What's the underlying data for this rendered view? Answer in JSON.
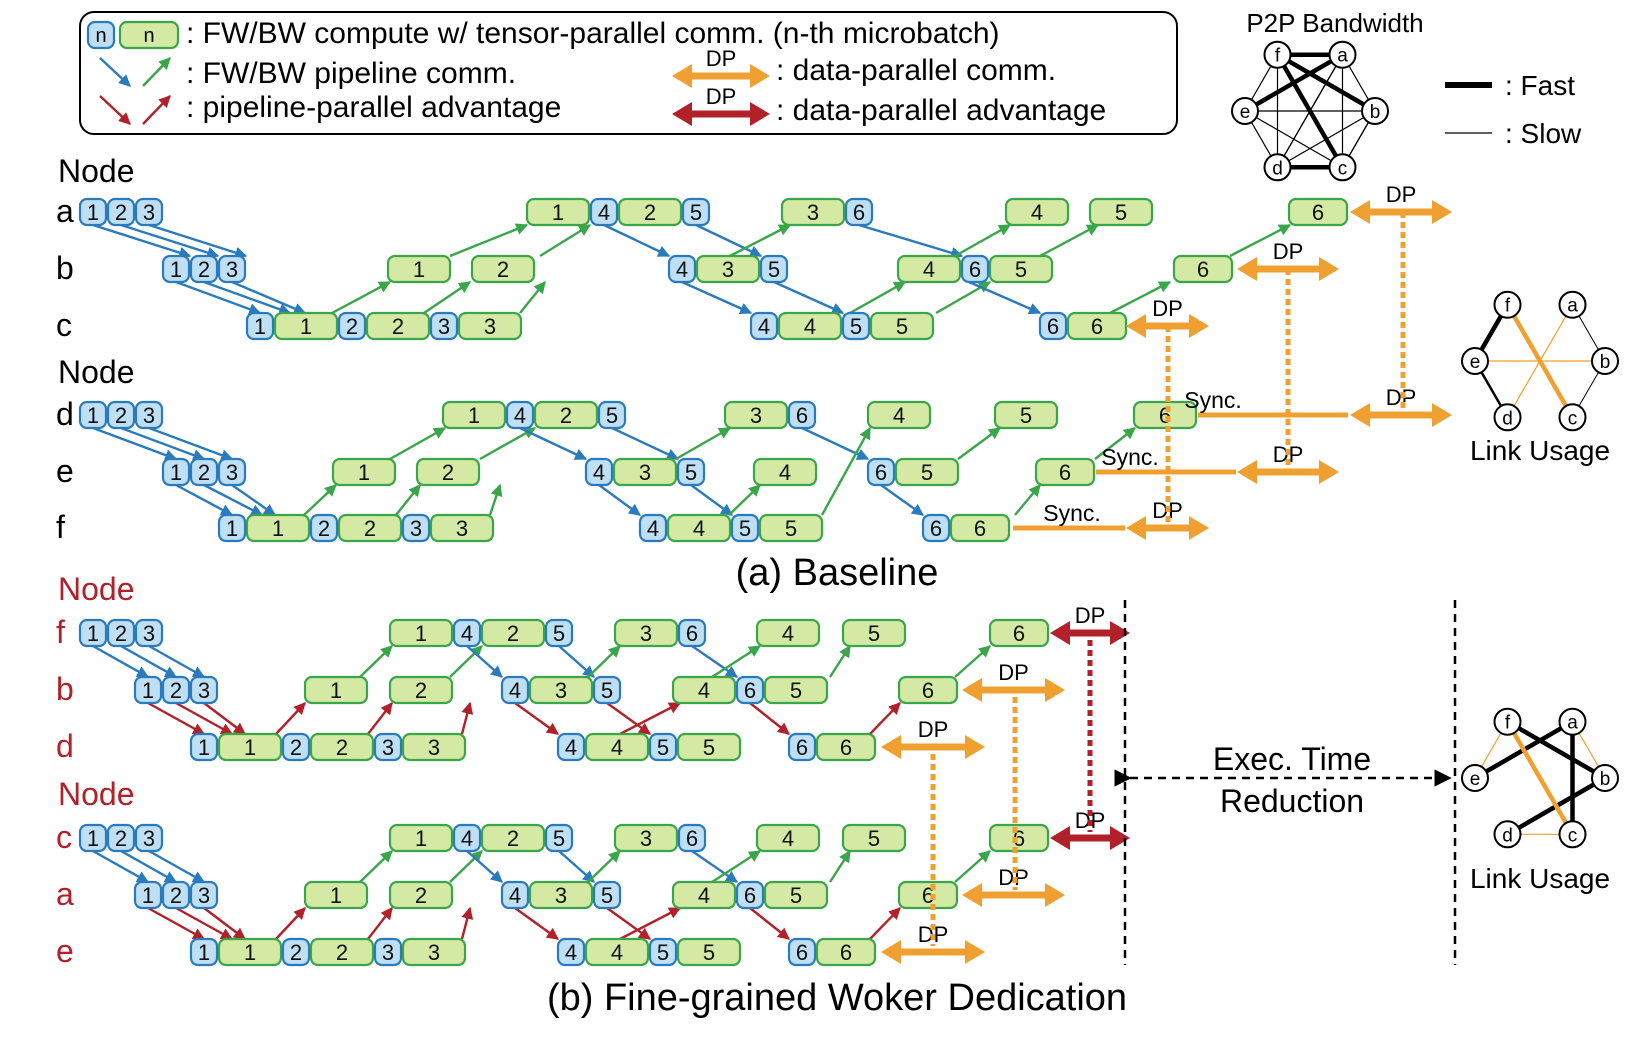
{
  "legend": {
    "box_n": "n",
    "compute": ": FW/BW compute w/ tensor-parallel comm. (n-th microbatch)",
    "pipeline_comm": ": FW/BW pipeline comm.",
    "pipeline_adv": ": pipeline-parallel advantage",
    "dp_tag": "DP",
    "dp_comm": ": data-parallel comm.",
    "dp_adv": ": data-parallel advantage"
  },
  "p2p": {
    "title": "P2P Bandwidth",
    "fast": ": Fast",
    "slow": ": Slow",
    "nodes": [
      "a",
      "b",
      "c",
      "d",
      "e",
      "f"
    ]
  },
  "link_usage": "Link Usage",
  "node_header": "Node",
  "baseline": {
    "caption": "(a) Baseline",
    "nodes": [
      "a",
      "b",
      "c",
      "d",
      "e",
      "f"
    ]
  },
  "dedication": {
    "caption": "(b) Fine-grained Woker Dedication",
    "nodes": [
      "f",
      "b",
      "d",
      "c",
      "a",
      "e"
    ]
  },
  "sync": "Sync.",
  "exec_time": [
    "Exec. Time",
    "Reduction"
  ],
  "colors": {
    "blue_fill": "#bfdff5",
    "blue_stroke": "#2a7bbd",
    "green_fill": "#d4e9a4",
    "green_stroke": "#3aa64a",
    "orange": "#f0a030",
    "red": "#b2202a",
    "node_red": "#b2202a"
  }
}
